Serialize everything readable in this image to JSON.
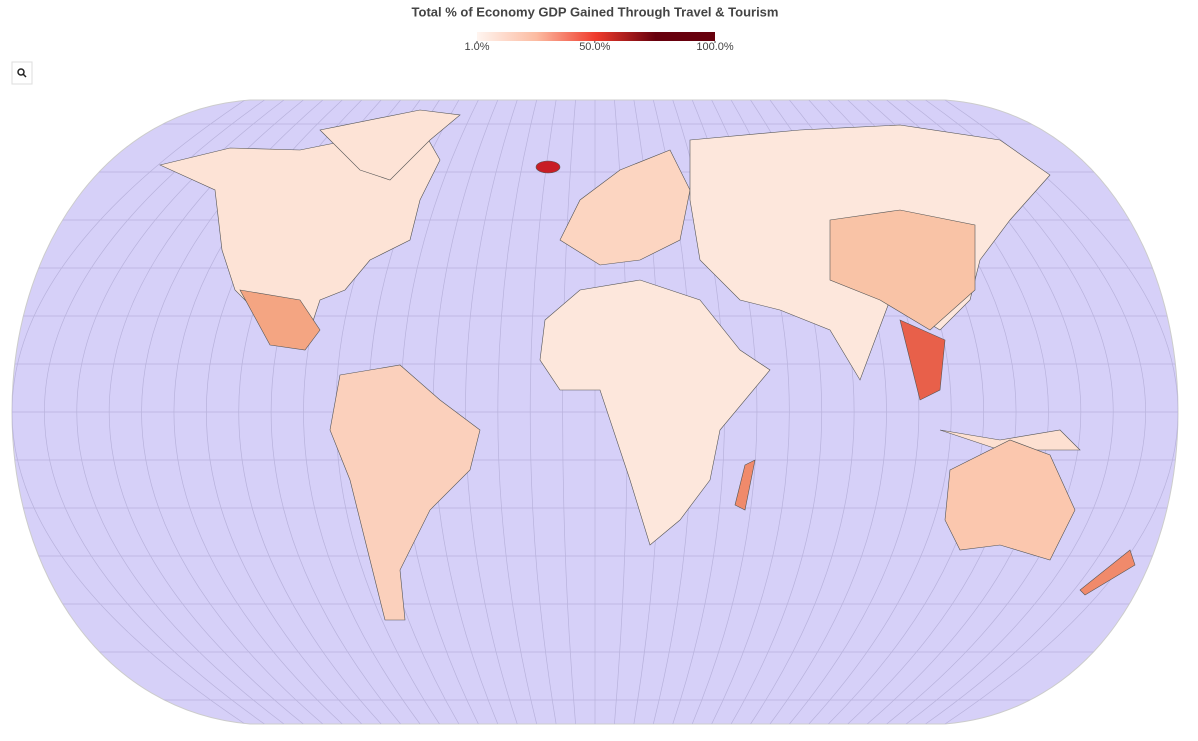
{
  "title": "Total % of Economy GDP Gained Through Travel & Tourism",
  "colorbar": {
    "range": [
      1,
      100
    ],
    "colors": [
      "#fff5f0",
      "#fcbba1",
      "#ef3b2c",
      "#67000d",
      "#67000d"
    ],
    "ticks": [
      {
        "value": 1,
        "label": "1.0%"
      },
      {
        "value": 50,
        "label": "50.0%"
      },
      {
        "value": 100,
        "label": "100.0%"
      }
    ]
  }
}
